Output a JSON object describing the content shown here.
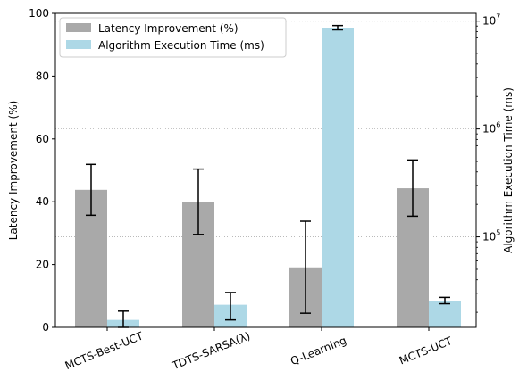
{
  "chart_data": {
    "type": "bar",
    "categories": [
      "MCTS-Best-UCT",
      "TDTS-SARSA(λ)",
      "Q-Learning",
      "MCTS-UCT"
    ],
    "series": [
      {
        "name": "Latency Improvement (%)",
        "axis": "left",
        "color": "#a9a9a9",
        "values": [
          43.8,
          39.9,
          19.1,
          44.3
        ],
        "error_low": [
          35.7,
          29.6,
          4.5,
          35.4
        ],
        "error_high": [
          51.9,
          50.4,
          33.8,
          53.3
        ]
      },
      {
        "name": "Algorithm Execution Time (ms)",
        "axis": "right",
        "color": "#add8e6",
        "values": [
          17000,
          23500,
          8700000,
          25500
        ],
        "error_low": [
          14500,
          17000,
          8300000,
          24000
        ],
        "error_high": [
          20500,
          30500,
          9100000,
          27500
        ]
      }
    ],
    "ylabel": "Latency Improvement (%)",
    "ylim": [
      0,
      100
    ],
    "yticks": [
      "0",
      "20",
      "40",
      "60",
      "80",
      "100"
    ],
    "ylabel_right": "Algorithm Execution Time (ms)",
    "ylim_right": [
      14500,
      11800000
    ],
    "yscale_right": "log",
    "yticks_right": [
      {
        "value": 100000,
        "base": "10",
        "exp": "5"
      },
      {
        "value": 1000000,
        "base": "10",
        "exp": "6"
      },
      {
        "value": 10000000,
        "base": "10",
        "exp": "7"
      }
    ],
    "grid": "dotted, right-axis major ticks",
    "legend_position": "top-left"
  }
}
